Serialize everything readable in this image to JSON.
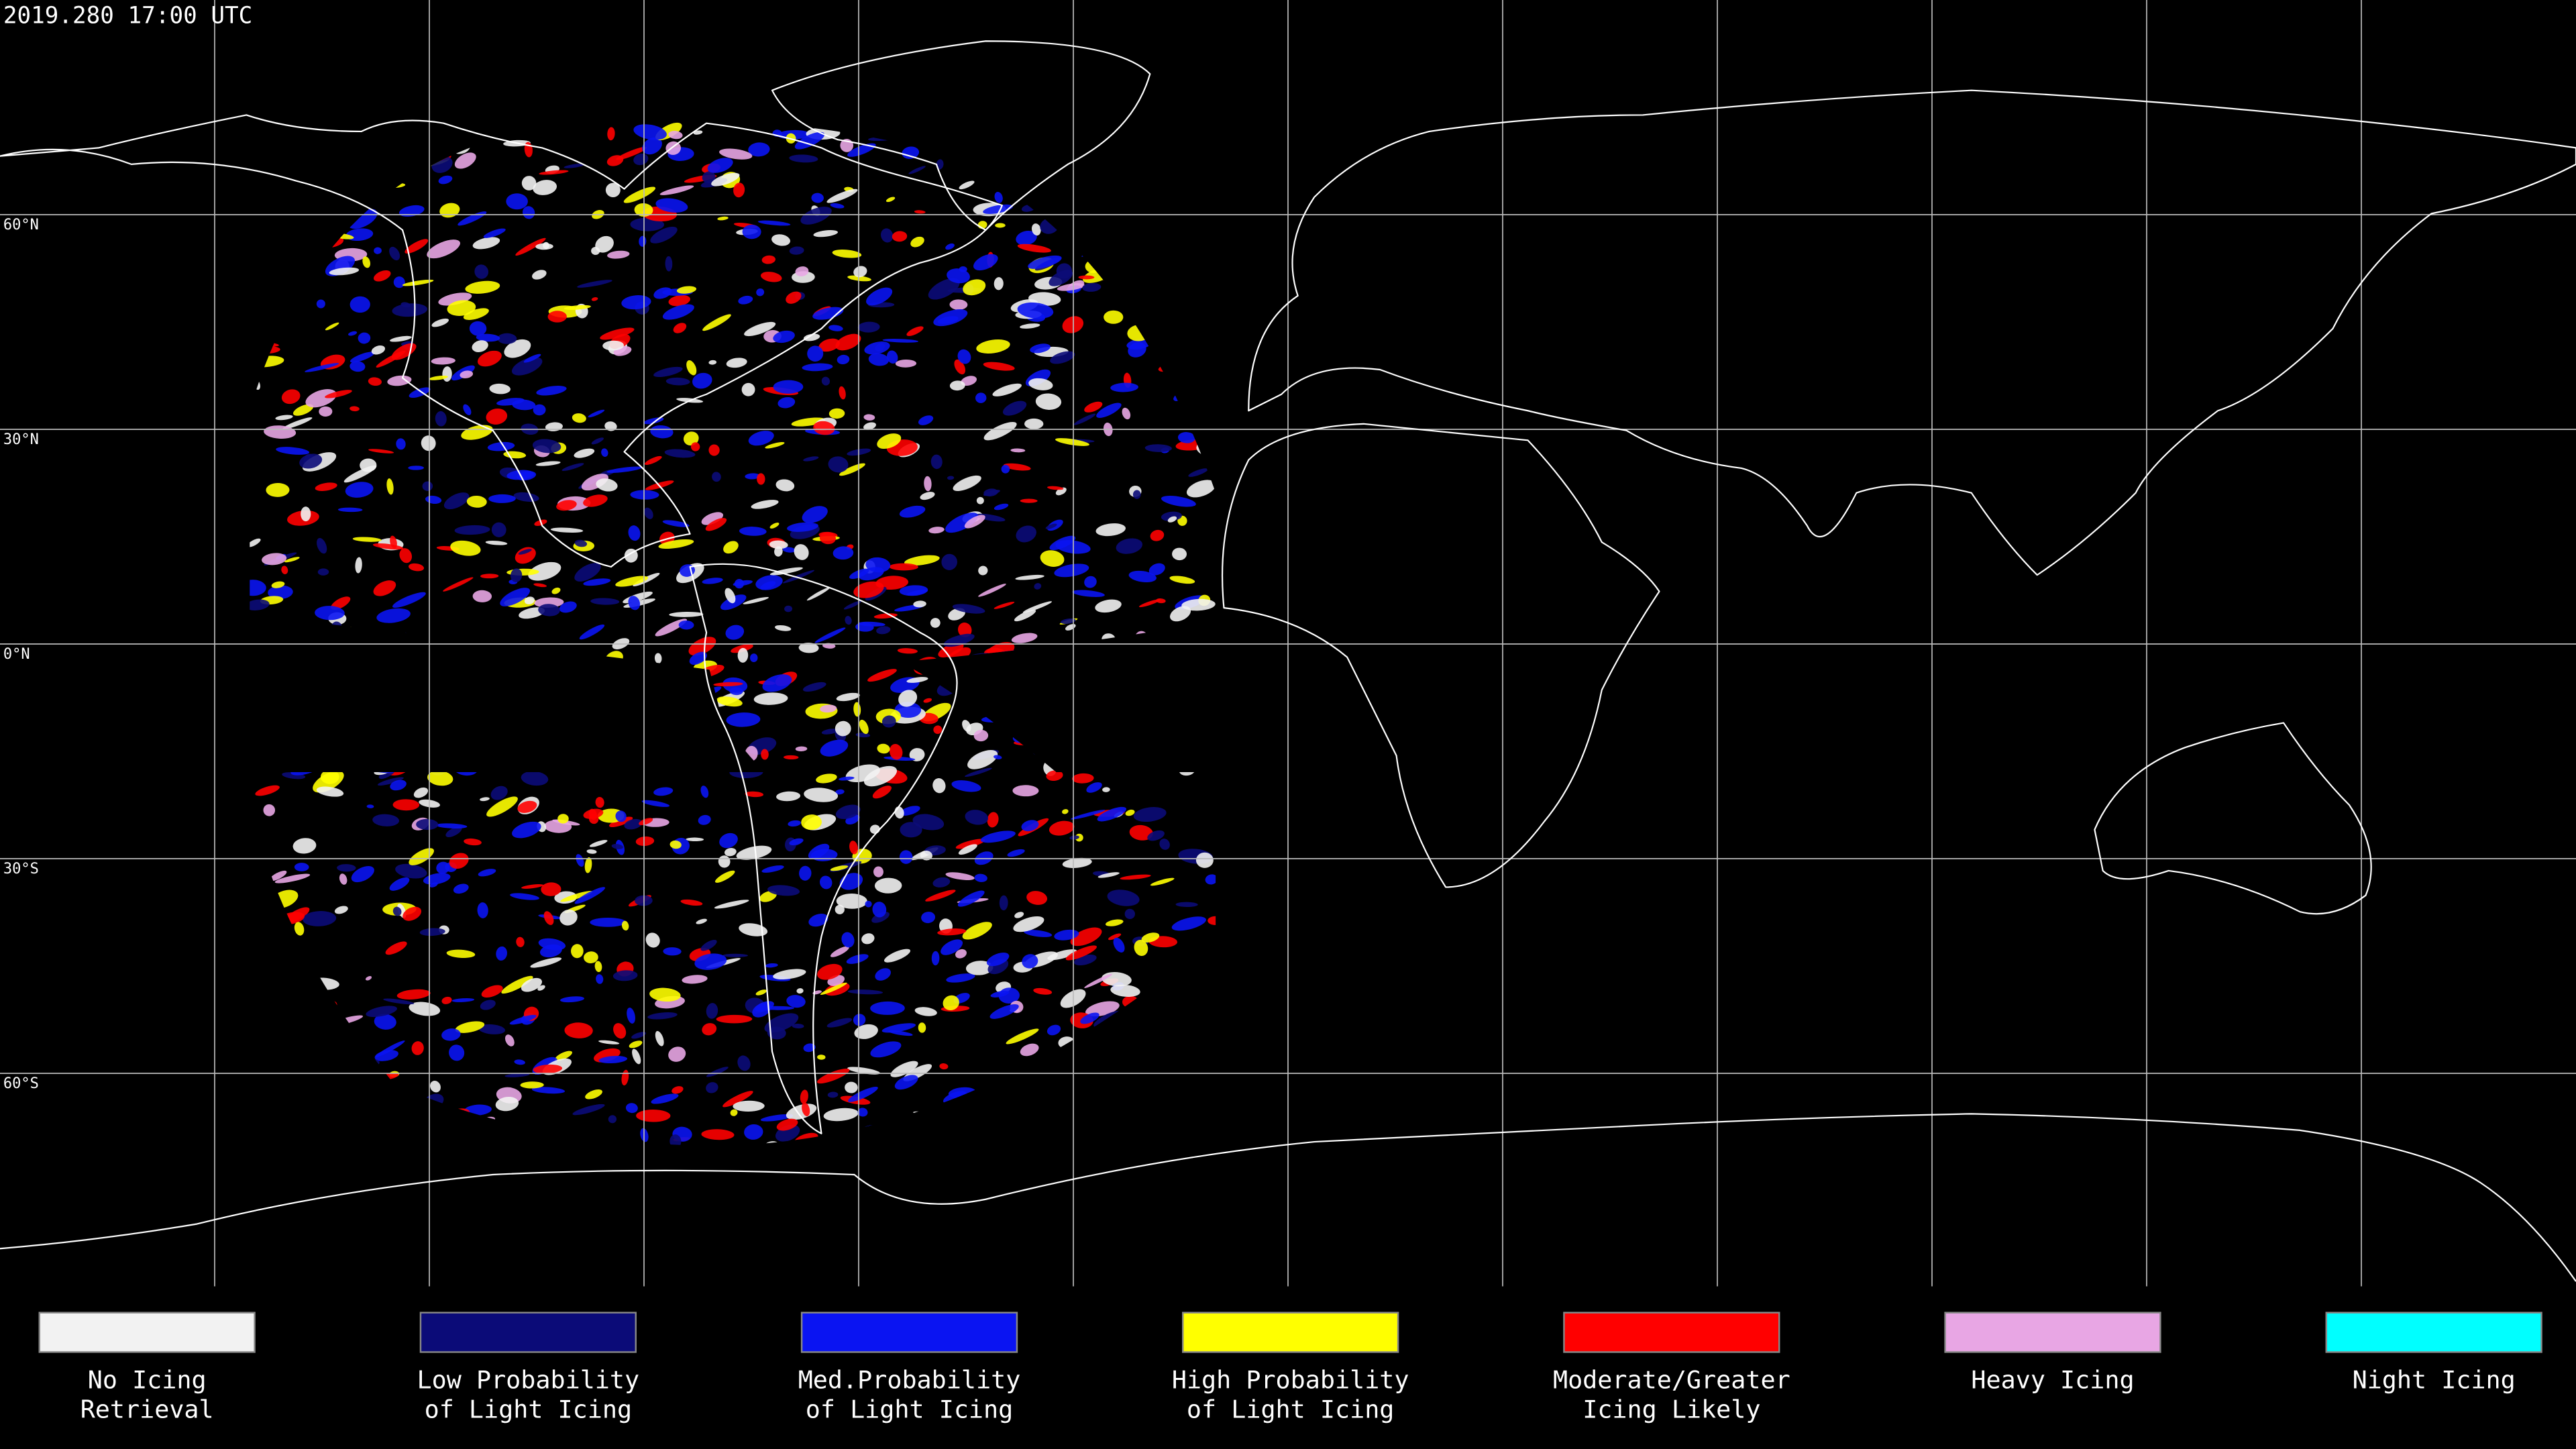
{
  "header": {
    "title": "2019.280 17:00 UTC"
  },
  "latitude_lines": [
    {
      "value": 60,
      "label": "60°N"
    },
    {
      "value": 30,
      "label": "30°N"
    },
    {
      "value": 0,
      "label": "0°N"
    },
    {
      "value": -30,
      "label": "30°S"
    },
    {
      "value": -60,
      "label": "60°S"
    }
  ],
  "legend": {
    "items": [
      {
        "label": [
          "No Icing",
          "Retrieval"
        ],
        "color": "#f2f2f2"
      },
      {
        "label": [
          "Low Probability",
          "of Light Icing"
        ],
        "color": "#0b0b78"
      },
      {
        "label": [
          "Med.Probability",
          "of Light Icing"
        ],
        "color": "#0a14f2"
      },
      {
        "label": [
          "High Probability",
          "of Light Icing"
        ],
        "color": "#ffff00"
      },
      {
        "label": [
          "Moderate/Greater",
          "Icing Likely"
        ],
        "color": "#ff0000"
      },
      {
        "label": [
          "Heavy Icing"
        ],
        "color": "#e8a6e4"
      },
      {
        "label": [
          "Night Icing"
        ],
        "color": "#00ffff"
      }
    ]
  }
}
